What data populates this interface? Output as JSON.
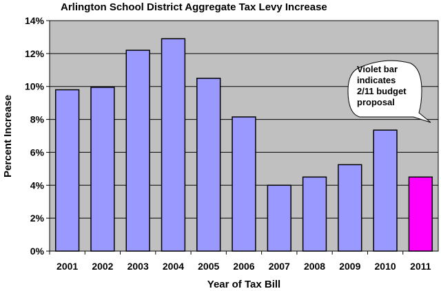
{
  "chart_data": {
    "type": "bar",
    "title": "Arlington School District Aggregate Tax Levy Increase",
    "xlabel": "Year of Tax Bill",
    "ylabel": "Percent Increase",
    "categories": [
      "2001",
      "2002",
      "2003",
      "2004",
      "2005",
      "2006",
      "2007",
      "2008",
      "2009",
      "2010",
      "2011"
    ],
    "values": [
      9.8,
      9.95,
      12.2,
      12.9,
      10.5,
      8.15,
      4.0,
      4.5,
      5.25,
      7.35,
      4.5
    ],
    "ylim": [
      0,
      14
    ],
    "yticks": [
      0,
      2,
      4,
      6,
      8,
      10,
      12,
      14
    ],
    "ytick_labels": [
      "0%",
      "2%",
      "4%",
      "6%",
      "8%",
      "10%",
      "12%",
      "14%"
    ],
    "grid": true,
    "colors": {
      "bar": "#9999ff",
      "highlight_bar": "#ff00ff",
      "plot_background": "#c0c0c0",
      "gridline": "#000000"
    },
    "highlight_category": "2011",
    "annotation": {
      "lines": [
        "Violet bar",
        "indicates",
        "2/11 budget",
        "proposal"
      ]
    }
  }
}
